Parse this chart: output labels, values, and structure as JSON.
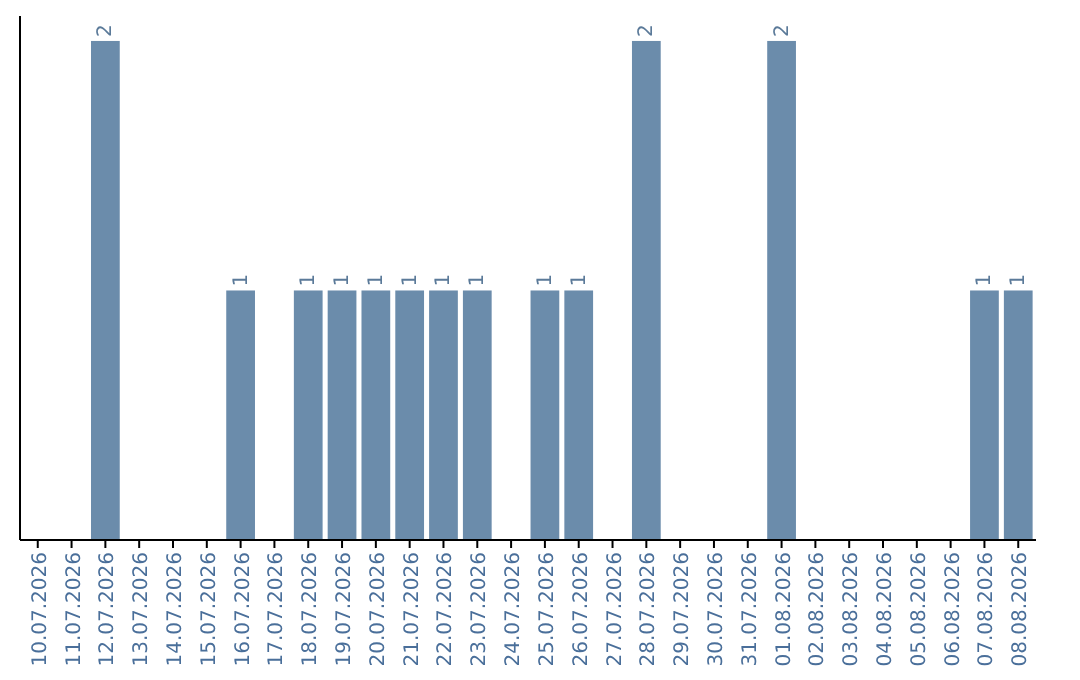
{
  "chart_data": {
    "type": "bar",
    "categories": [
      "10.07.2026",
      "11.07.2026",
      "12.07.2026",
      "13.07.2026",
      "14.07.2026",
      "15.07.2026",
      "16.07.2026",
      "17.07.2026",
      "18.07.2026",
      "19.07.2026",
      "20.07.2026",
      "21.07.2026",
      "22.07.2026",
      "23.07.2026",
      "24.07.2026",
      "25.07.2026",
      "26.07.2026",
      "27.07.2026",
      "28.07.2026",
      "29.07.2026",
      "30.07.2026",
      "31.07.2026",
      "01.08.2026",
      "02.08.2026",
      "03.08.2026",
      "04.08.2026",
      "05.08.2026",
      "06.08.2026",
      "07.08.2026",
      "08.08.2026"
    ],
    "values": [
      0,
      0,
      2,
      0,
      0,
      0,
      1,
      0,
      1,
      1,
      1,
      1,
      1,
      1,
      0,
      1,
      1,
      0,
      2,
      0,
      0,
      0,
      2,
      0,
      0,
      0,
      0,
      0,
      1,
      1
    ],
    "value_labels": [
      null,
      null,
      "2",
      null,
      null,
      null,
      "1",
      null,
      "1",
      "1",
      "1",
      "1",
      "1",
      "1",
      null,
      "1",
      "1",
      null,
      "2",
      null,
      null,
      null,
      "2",
      null,
      null,
      null,
      null,
      null,
      "1",
      "1"
    ],
    "color": "#6b8cab",
    "tick_labels": "x"
  }
}
